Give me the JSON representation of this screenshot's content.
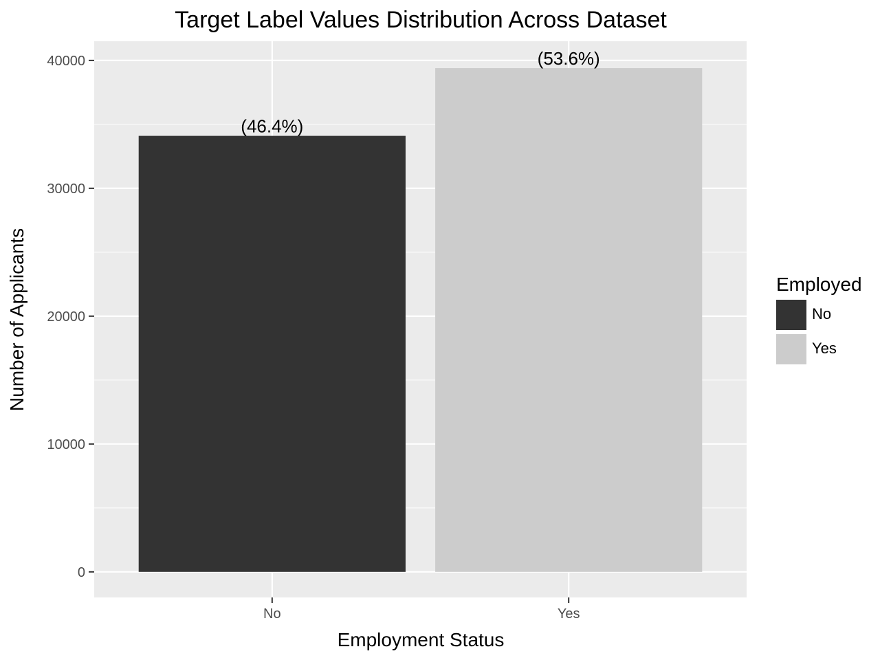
{
  "chart_data": {
    "type": "bar",
    "title": "Target Label Values Distribution Across Dataset",
    "xlabel": "Employment Status",
    "ylabel": "Number of Applicants",
    "categories": [
      "No",
      "Yes"
    ],
    "values": [
      34100,
      39400
    ],
    "data_labels": [
      "(46.4%)",
      "(53.6%)"
    ],
    "colors": [
      "#333333",
      "#cccccc"
    ],
    "ylim": [
      -2000,
      41500
    ],
    "yticks": [
      0,
      10000,
      20000,
      30000,
      40000
    ],
    "ytick_labels": [
      "0",
      "10000",
      "20000",
      "30000",
      "40000"
    ],
    "grid": true,
    "panel_background": "#ebebeb",
    "legend": {
      "title": "Employed",
      "position": "right",
      "entries": [
        {
          "label": "No",
          "color": "#333333"
        },
        {
          "label": "Yes",
          "color": "#cccccc"
        }
      ]
    }
  }
}
